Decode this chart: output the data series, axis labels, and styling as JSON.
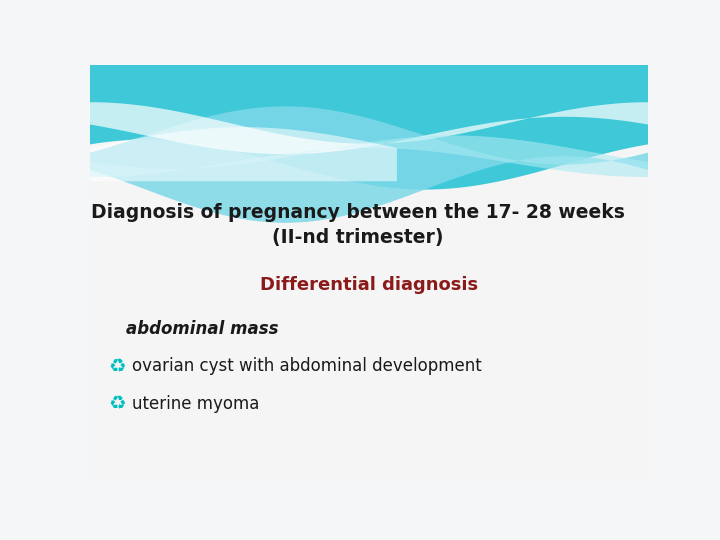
{
  "title_line1": "Diagnosis of pregnancy between the 17- 28 weeks",
  "title_line2": "(II-nd trimester)",
  "subtitle": "Differential diagnosis",
  "subtitle_color": "#8B1A1A",
  "section_label": "abdominal mass",
  "bullet1": "ovarian cyst with abdominal development",
  "bullet2": "uterine myoma",
  "background_color": "#f4f6f8",
  "title_color": "#1a1a1a",
  "body_color": "#1a1a1a",
  "bullet_color": "#00BFBF",
  "wave_deep": "#3FC8D8",
  "wave_mid": "#7DD8E8",
  "wave_light": "#AAEAF2",
  "wave_white": "#FFFFFF"
}
